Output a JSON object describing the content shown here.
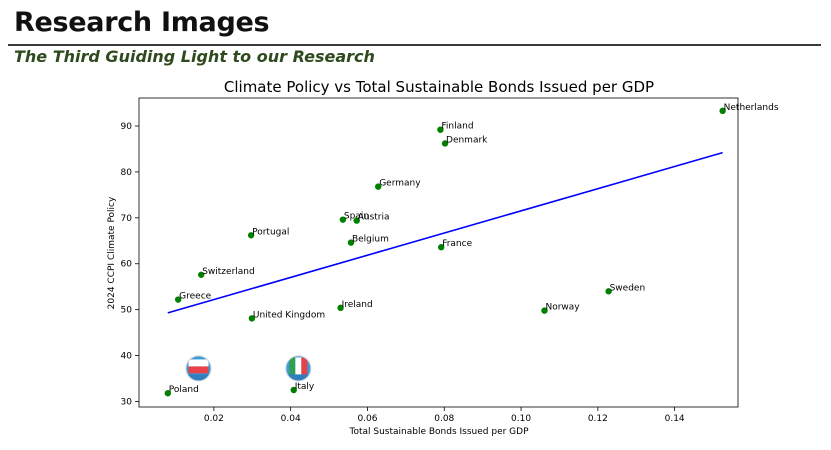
{
  "header": {
    "title": "Research Images",
    "subtitle": "The Third Guiding Light to our Research"
  },
  "chart_data": {
    "type": "scatter",
    "title": "Climate Policy vs Total Sustainable Bonds Issued per GDP",
    "xlabel": "Total Sustainable Bonds Issued per GDP",
    "ylabel": "2024 CCPI Climate Policy",
    "xlim": [
      0.0005,
      0.1565
    ],
    "ylim": [
      28.8,
      96.1
    ],
    "xticks": [
      0.02,
      0.04,
      0.06,
      0.08,
      0.1,
      0.12,
      0.14
    ],
    "xtick_labels": [
      "0.02",
      "0.04",
      "0.06",
      "0.08",
      "0.10",
      "0.12",
      "0.14"
    ],
    "yticks": [
      30,
      40,
      50,
      60,
      70,
      80,
      90
    ],
    "ytick_labels": [
      "30",
      "40",
      "50",
      "60",
      "70",
      "80",
      "90"
    ],
    "grid": false,
    "point_color": "#008000",
    "trend_color": "#0000ff",
    "points": [
      {
        "label": "Netherlands",
        "x": 0.1525,
        "y": 93.3
      },
      {
        "label": "Finland",
        "x": 0.079,
        "y": 89.2
      },
      {
        "label": "Denmark",
        "x": 0.0802,
        "y": 86.2
      },
      {
        "label": "Germany",
        "x": 0.0628,
        "y": 76.8
      },
      {
        "label": "Spain",
        "x": 0.0536,
        "y": 69.6
      },
      {
        "label": "Austria",
        "x": 0.0572,
        "y": 69.4
      },
      {
        "label": "Portugal",
        "x": 0.0297,
        "y": 66.2
      },
      {
        "label": "Belgium",
        "x": 0.0557,
        "y": 64.6
      },
      {
        "label": "France",
        "x": 0.0792,
        "y": 63.6
      },
      {
        "label": "Switzerland",
        "x": 0.0167,
        "y": 57.6
      },
      {
        "label": "Sweden",
        "x": 0.1228,
        "y": 54.0
      },
      {
        "label": "Greece",
        "x": 0.0107,
        "y": 52.2
      },
      {
        "label": "Ireland",
        "x": 0.053,
        "y": 50.4
      },
      {
        "label": "Norway",
        "x": 0.1061,
        "y": 49.8
      },
      {
        "label": "United Kingdom",
        "x": 0.0299,
        "y": 48.1
      },
      {
        "label": "Poland",
        "x": 0.008,
        "y": 31.8
      },
      {
        "label": "Italy",
        "x": 0.0408,
        "y": 32.5
      }
    ],
    "trendline": {
      "x": [
        0.008,
        0.1525
      ],
      "y": [
        49.3,
        84.2
      ]
    },
    "flag_markers": [
      {
        "country": "Poland",
        "x": 0.016,
        "y": 37.2,
        "icon": "poland-flag-globe-icon",
        "colors": [
          "#ffffff",
          "#e8414a",
          "#3a9bd6"
        ]
      },
      {
        "country": "Italy",
        "x": 0.042,
        "y": 37.2,
        "icon": "italy-flag-globe-icon",
        "colors": [
          "#2e9e4f",
          "#ffffff",
          "#e8414a"
        ]
      }
    ]
  }
}
